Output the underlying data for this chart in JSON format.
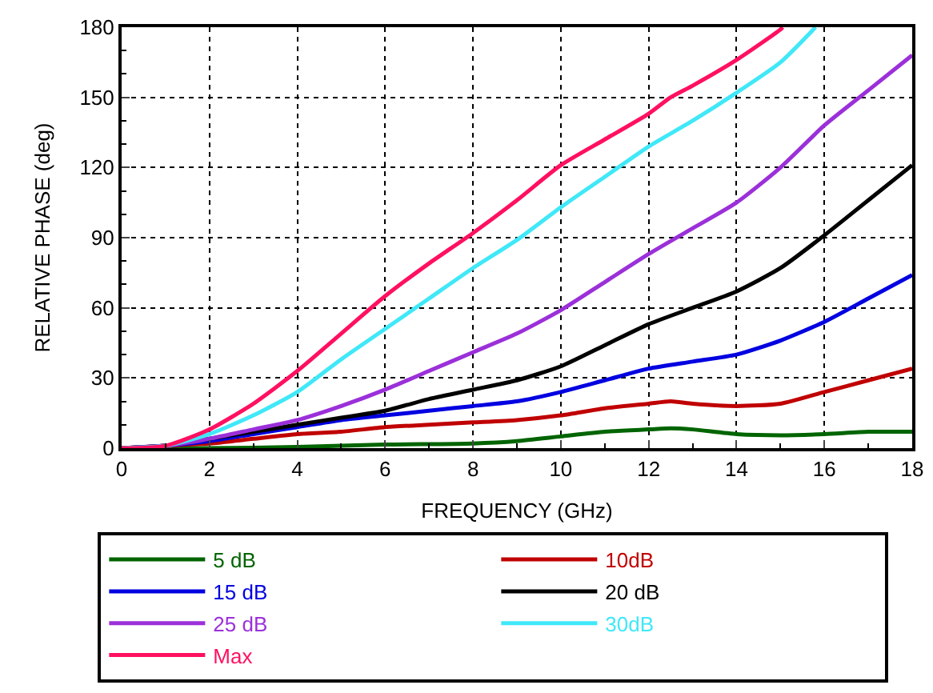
{
  "chart_data": {
    "type": "line",
    "xlabel": "FREQUENCY (GHz)",
    "ylabel": "RELATIVE PHASE (deg)",
    "xlim": [
      0,
      18
    ],
    "xticks": [
      0,
      2,
      4,
      6,
      8,
      10,
      12,
      14,
      16,
      18
    ],
    "ylim": [
      0,
      180
    ],
    "yticks": [
      0,
      30,
      60,
      90,
      120,
      150,
      180
    ],
    "grid": true,
    "legend": "bottom",
    "line_style": "solid",
    "marker": "none",
    "series": [
      {
        "name": "5 dB",
        "color": "#006400",
        "x": [
          0,
          2,
          4,
          6,
          8,
          9,
          10,
          11,
          12,
          12.5,
          13,
          14,
          15,
          16,
          17,
          18
        ],
        "values": [
          0,
          0,
          0.5,
          1.5,
          2,
          3,
          5,
          7,
          8,
          8.5,
          8,
          6,
          5.5,
          6,
          7,
          7
        ]
      },
      {
        "name": "10dB",
        "color": "#c00000",
        "x": [
          0,
          1,
          2,
          3,
          4,
          5,
          6,
          7,
          8,
          9,
          10,
          11,
          12,
          12.5,
          13,
          14,
          15,
          16,
          17,
          18
        ],
        "values": [
          0,
          1,
          2,
          4,
          6,
          7,
          9,
          10,
          11,
          12,
          14,
          17,
          19,
          20,
          19,
          18,
          19,
          24,
          29,
          34
        ]
      },
      {
        "name": "15 dB",
        "color": "#0000e0",
        "x": [
          0,
          1,
          2,
          3,
          4,
          5,
          6,
          7,
          8,
          9,
          10,
          11,
          12,
          13,
          14,
          15,
          16,
          17,
          18
        ],
        "values": [
          0,
          1,
          3,
          6,
          9,
          12,
          14,
          16,
          18,
          20,
          24,
          29,
          34,
          37,
          40,
          46,
          54,
          64,
          74
        ]
      },
      {
        "name": "20 dB",
        "color": "#000000",
        "x": [
          0,
          1,
          2,
          3,
          4,
          5,
          6,
          7,
          8,
          9,
          10,
          11,
          12,
          13,
          14,
          15,
          16,
          17,
          18
        ],
        "values": [
          0,
          1,
          4,
          7,
          10,
          13,
          16,
          21,
          25,
          29,
          35,
          44,
          53,
          60,
          67,
          77,
          91,
          106,
          121
        ]
      },
      {
        "name": "25 dB",
        "color": "#9b30d9",
        "x": [
          0,
          1,
          2,
          3,
          4,
          5,
          6,
          7,
          8,
          9,
          10,
          11,
          12,
          13,
          14,
          15,
          16,
          17,
          18
        ],
        "values": [
          0,
          1,
          4,
          8,
          12,
          18,
          25,
          33,
          41,
          49,
          59,
          71,
          83,
          94,
          105,
          120,
          138,
          153,
          168
        ]
      },
      {
        "name": "30dB",
        "color": "#40e8f8",
        "x": [
          0,
          1,
          2,
          3,
          4,
          5,
          6,
          7,
          8,
          9,
          10,
          11,
          12,
          13,
          14,
          15,
          15.8
        ],
        "values": [
          0,
          1,
          6,
          14,
          24,
          38,
          51,
          64,
          77,
          89,
          103,
          116,
          129,
          140,
          152,
          165,
          180
        ]
      },
      {
        "name": "Max",
        "color": "#ff1060",
        "x": [
          0,
          1,
          2,
          3,
          4,
          5,
          6,
          7,
          8,
          9,
          10,
          11,
          12,
          12.5,
          13,
          14,
          15,
          15.05
        ],
        "values": [
          0,
          1,
          8,
          19,
          33,
          49,
          65,
          79,
          92,
          106,
          121,
          132,
          143,
          150,
          155,
          166,
          179,
          180
        ]
      }
    ]
  }
}
